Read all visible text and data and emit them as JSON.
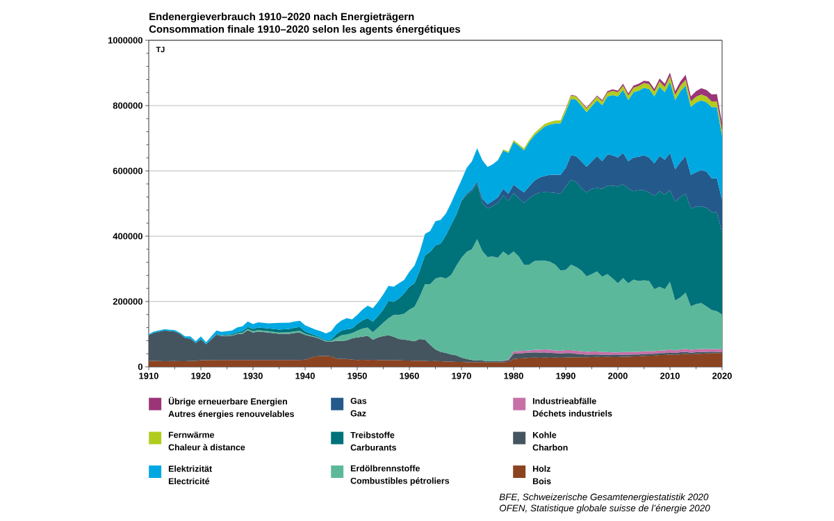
{
  "chart_data": {
    "type": "area",
    "stacked": true,
    "title": "Endenergieverbrauch 1910–2020 nach Energieträgern",
    "subtitle": "Consommation finale 1910–2020 selon les agents énergétiques",
    "ylabel": "TJ",
    "annotations": [
      "BFE, Schweizerische Gesamtenergiestatistik 2020",
      "OFEN, Statistique globale suisse de l’énergie 2020"
    ],
    "xlim": [
      1910,
      2020
    ],
    "ylim": [
      0,
      1000000
    ],
    "xticks": [
      1910,
      {
        "value": 1915,
        "label": null
      },
      1920,
      {
        "value": 1925,
        "label": null
      },
      1930,
      {
        "value": 1935,
        "label": null
      },
      1940,
      {
        "value": 1945,
        "label": null
      },
      1950,
      {
        "value": 1955,
        "label": null
      },
      1960,
      {
        "value": 1965,
        "label": null
      },
      1970,
      {
        "value": 1975,
        "label": null
      },
      1980,
      {
        "value": 1985,
        "label": null
      },
      1990,
      {
        "value": 1995,
        "label": null
      },
      2000,
      {
        "value": 2005,
        "label": null
      },
      2010,
      {
        "value": 2015,
        "label": null
      },
      2020
    ],
    "yticks": [
      0,
      {
        "value": 40000,
        "label": null
      },
      {
        "value": 80000,
        "label": null
      },
      {
        "value": 120000,
        "label": null
      },
      {
        "value": 160000,
        "label": null
      },
      200000,
      {
        "value": 240000,
        "label": null
      },
      {
        "value": 280000,
        "label": null
      },
      {
        "value": 320000,
        "label": null
      },
      {
        "value": 360000,
        "label": null
      },
      400000,
      {
        "value": 440000,
        "label": null
      },
      {
        "value": 480000,
        "label": null
      },
      {
        "value": 520000,
        "label": null
      },
      {
        "value": 560000,
        "label": null
      },
      600000,
      {
        "value": 640000,
        "label": null
      },
      {
        "value": 680000,
        "label": null
      },
      {
        "value": 720000,
        "label": null
      },
      {
        "value": 760000,
        "label": null
      },
      800000,
      {
        "value": 840000,
        "label": null
      },
      {
        "value": 880000,
        "label": null
      },
      {
        "value": 920000,
        "label": null
      },
      {
        "value": 960000,
        "label": null
      },
      1000000
    ],
    "grid": "y",
    "legend": "bottom",
    "x": [
      1910,
      1911,
      1913,
      1915,
      1916,
      1917,
      1918,
      1919,
      1920,
      1921,
      1923,
      1924,
      1926,
      1927,
      1928,
      1929,
      1930,
      1931,
      1933,
      1935,
      1937,
      1938,
      1939,
      1940,
      1942,
      1943,
      1944,
      1945,
      1946,
      1947,
      1948,
      1949,
      1950,
      1951,
      1952,
      1953,
      1954,
      1955,
      1956,
      1957,
      1958,
      1959,
      1960,
      1961,
      1962,
      1963,
      1964,
      1965,
      1966,
      1967,
      1968,
      1969,
      1970,
      1971,
      1972,
      1973,
      1974,
      1975,
      1976,
      1977,
      1978,
      1979,
      1980,
      1981,
      1982,
      1983,
      1984,
      1985,
      1986,
      1987,
      1988,
      1989,
      1990,
      1991,
      1992,
      1993,
      1994,
      1995,
      1996,
      1997,
      1998,
      1999,
      2000,
      2001,
      2002,
      2003,
      2004,
      2005,
      2006,
      2007,
      2008,
      2009,
      2010,
      2011,
      2012,
      2013,
      2014,
      2015,
      2016,
      2017,
      2018,
      2019,
      2020
    ],
    "series": [
      {
        "name": "Holz\nBois",
        "color": "#8b4321",
        "values": [
          18000,
          18000,
          17000,
          17500,
          17000,
          17000,
          18000,
          18000,
          20000,
          20000,
          21000,
          20500,
          21000,
          20500,
          21000,
          20500,
          21000,
          20500,
          21000,
          20500,
          21000,
          20500,
          21000,
          22000,
          32000,
          33000,
          33000,
          32000,
          25000,
          24000,
          24000,
          22000,
          21000,
          21500,
          21000,
          21500,
          21000,
          20000,
          20500,
          20000,
          20000,
          19000,
          19000,
          18000,
          18500,
          18000,
          17000,
          17500,
          17000,
          16000,
          16000,
          15000,
          15000,
          14000,
          14500,
          14000,
          14500,
          14000,
          14500,
          14000,
          14000,
          15000,
          24000,
          25500,
          26000,
          27500,
          28000,
          27500,
          28000,
          27500,
          28000,
          27500,
          28000,
          29000,
          29500,
          29000,
          29000,
          30000,
          30500,
          30000,
          30500,
          30000,
          30000,
          31000,
          31000,
          32000,
          32000,
          33500,
          34000,
          34000,
          36000,
          36000,
          38000,
          36000,
          38500,
          40000,
          38000,
          39500,
          40000,
          41000,
          41000,
          42000,
          42000
        ]
      },
      {
        "name": "Kohle\nCharbon",
        "color": "#455560",
        "values": [
          79000,
          86000,
          94000,
          90500,
          84000,
          71000,
          68000,
          55000,
          64000,
          49000,
          77000,
          73500,
          74000,
          79500,
          80000,
          91500,
          84000,
          87500,
          84000,
          80500,
          80000,
          83000,
          84000,
          76000,
          58000,
          51000,
          44000,
          45000,
          54000,
          55000,
          57000,
          65000,
          69000,
          70500,
          74000,
          61500,
          69000,
          74000,
          76500,
          72000,
          65000,
          64500,
          62000,
          60000,
          66500,
          65000,
          50000,
          35500,
          29000,
          26500,
          22000,
          20000,
          13000,
          10000,
          6500,
          5000,
          4500,
          3000,
          3000,
          3000,
          4000,
          5000,
          16000,
          16000,
          16000,
          16000,
          16000,
          16000,
          16000,
          15000,
          14000,
          13500,
          14000,
          13000,
          10500,
          10000,
          8000,
          8000,
          7500,
          7000,
          6500,
          6000,
          6000,
          6000,
          6000,
          6000,
          6000,
          6000,
          6000,
          6000,
          6000,
          6000,
          6000,
          6000,
          6000,
          6000,
          5000,
          5000,
          5000,
          5000,
          5500,
          4000,
          4000
        ]
      },
      {
        "name": "Industrieabfälle\nDéchets industriels",
        "color": "#c770a8",
        "values": [
          null,
          null,
          null,
          null,
          null,
          null,
          null,
          null,
          null,
          null,
          null,
          null,
          null,
          null,
          null,
          null,
          null,
          null,
          null,
          null,
          null,
          null,
          null,
          null,
          null,
          null,
          null,
          null,
          null,
          null,
          null,
          null,
          null,
          null,
          null,
          null,
          null,
          null,
          null,
          null,
          null,
          null,
          null,
          null,
          null,
          null,
          null,
          null,
          null,
          null,
          null,
          null,
          null,
          null,
          null,
          null,
          null,
          null,
          null,
          0,
          1000,
          2000,
          7000,
          7000,
          7000,
          6500,
          8000,
          8500,
          9000,
          9500,
          8000,
          8000,
          9000,
          9000,
          9000,
          9000,
          9000,
          9000,
          9000,
          8000,
          8000,
          8000,
          8000,
          8000,
          8000,
          8000,
          8000,
          8000,
          8000,
          8000,
          8000,
          8000,
          9000,
          8000,
          8500,
          9000,
          9000,
          9000,
          9000,
          9000,
          7500,
          8500,
          8000
        ]
      },
      {
        "name": "Erdölbrennstoffe\nCombustibles pétroliers",
        "color": "#5cb89b",
        "values": [
          null,
          null,
          null,
          null,
          null,
          null,
          null,
          null,
          null,
          null,
          0,
          1000,
          2000,
          2000,
          3000,
          4000,
          4000,
          4000,
          4000,
          4000,
          5000,
          5000,
          5000,
          3000,
          2000,
          1500,
          1000,
          2000,
          9500,
          18000,
          18000,
          16000,
          20500,
          25000,
          25000,
          23000,
          30000,
          41000,
          52000,
          67000,
          74000,
          79500,
          94000,
          106000,
          131000,
          170000,
          186000,
          217000,
          229000,
          227500,
          243000,
          274000,
          306000,
          328000,
          339000,
          372000,
          336000,
          319000,
          320500,
          317000,
          334000,
          319000,
          306000,
          289500,
          264000,
          263000,
          272000,
          273000,
          272000,
          270000,
          263000,
          246000,
          246000,
          262000,
          257000,
          247000,
          231000,
          237000,
          245000,
          231000,
          239000,
          226500,
          212000,
          227000,
          211000,
          221000,
          217000,
          217500,
          215000,
          190000,
          195000,
          188000,
          207000,
          153000,
          160000,
          172000,
          133000,
          138500,
          141000,
          130000,
          120000,
          115500,
          106000
        ]
      },
      {
        "name": "Treibstoffe\nCarburants",
        "color": "#00727a",
        "values": [
          null,
          null,
          null,
          null,
          null,
          null,
          null,
          null,
          null,
          0,
          2000,
          2000,
          3000,
          4000,
          5000,
          6000,
          7000,
          8000,
          8500,
          9000,
          10000,
          11000,
          12000,
          7000,
          4000,
          3000,
          2000,
          4000,
          11500,
          14000,
          16000,
          14000,
          20500,
          25000,
          29000,
          32000,
          36000,
          40000,
          53000,
          40000,
          50000,
          62000,
          70000,
          72000,
          79000,
          88000,
          99000,
          102000,
          102000,
          132000,
          153500,
          157000,
          174000,
          174000,
          177000,
          169000,
          147000,
          149000,
          154000,
          168000,
          172000,
          167000,
          179000,
          178000,
          189000,
          203000,
          203000,
          209000,
          209500,
          212000,
          219500,
          235000,
          255000,
          260000,
          260000,
          253000,
          257000,
          261000,
          256000,
          269000,
          271000,
          284500,
          296000,
          287000,
          290000,
          271000,
          278000,
          276000,
          271000,
          285000,
          293000,
          289000,
          281000,
          303000,
          307000,
          303000,
          299000,
          299000,
          296000,
          303000,
          299000,
          303000,
          250000
        ]
      },
      {
        "name": "Gas\nGaz",
        "color": "#24598b",
        "values": [
          null,
          null,
          null,
          null,
          null,
          null,
          null,
          null,
          null,
          null,
          null,
          null,
          null,
          null,
          null,
          null,
          null,
          null,
          null,
          null,
          null,
          null,
          null,
          null,
          null,
          null,
          null,
          null,
          null,
          null,
          null,
          null,
          null,
          null,
          null,
          null,
          null,
          null,
          null,
          null,
          null,
          null,
          null,
          null,
          null,
          null,
          null,
          null,
          null,
          null,
          null,
          0,
          2000,
          4000,
          6000,
          7000,
          13000,
          13000,
          16000,
          17000,
          20000,
          22000,
          26000,
          29000,
          32000,
          36500,
          43000,
          46000,
          50000,
          54000,
          56000,
          58000,
          57000,
          75000,
          79000,
          81000,
          78000,
          84000,
          97000,
          85000,
          95000,
          93000,
          89000,
          96000,
          83000,
          103000,
          102000,
          107000,
          107000,
          100000,
          108000,
          107000,
          114000,
          99000,
          107000,
          115000,
          104000,
          104500,
          111000,
          110000,
          104000,
          104000,
          100000
        ]
      },
      {
        "name": "Elektrizität\nElectricité",
        "color": "#00a8e2",
        "values": [
          3000,
          4000,
          4000,
          4000,
          3000,
          5000,
          7000,
          5000,
          9000,
          6000,
          11000,
          10000,
          11000,
          15000,
          15000,
          17000,
          15000,
          16000,
          15500,
          20500,
          19000,
          19500,
          19000,
          19000,
          18000,
          20500,
          22000,
          26000,
          30000,
          31000,
          34000,
          28000,
          28000,
          33000,
          38000,
          41000,
          43000,
          47000,
          46000,
          46000,
          47000,
          41000,
          46000,
          54000,
          57000,
          66000,
          64000,
          74000,
          73000,
          67000,
          66500,
          71000,
          62000,
          79000,
          86000,
          102000,
          118000,
          114000,
          112000,
          114000,
          118000,
          125000,
          131000,
          132000,
          129000,
          136500,
          139000,
          143000,
          151500,
          154000,
          156500,
          158000,
          172000,
          173000,
          173000,
          170500,
          168000,
          169500,
          171000,
          171000,
          178000,
          184000,
          187000,
          193000,
          188000,
          200000,
          203000,
          206000,
          210000,
          205000,
          212000,
          207000,
          218000,
          212000,
          217000,
          216000,
          208000,
          213500,
          214000,
          212000,
          218000,
          218000,
          197000
        ]
      },
      {
        "name": "Fernwärme\nChaleur à distance",
        "color": "#b2cb1f",
        "values": [
          null,
          null,
          null,
          null,
          null,
          null,
          null,
          null,
          null,
          null,
          null,
          null,
          null,
          null,
          null,
          null,
          null,
          null,
          null,
          null,
          null,
          null,
          null,
          null,
          null,
          null,
          null,
          null,
          null,
          null,
          null,
          null,
          null,
          null,
          null,
          null,
          null,
          null,
          null,
          null,
          null,
          null,
          null,
          null,
          null,
          null,
          null,
          null,
          null,
          null,
          null,
          null,
          null,
          null,
          null,
          null,
          null,
          null,
          null,
          0,
          3000,
          4000,
          5000,
          5000,
          6000,
          6000,
          7000,
          7500,
          8000,
          8000,
          9000,
          9000,
          10000,
          10000,
          10000,
          10500,
          11000,
          10500,
          12000,
          12000,
          12000,
          13000,
          13000,
          13000,
          14000,
          14000,
          14000,
          15000,
          15000,
          15000,
          16000,
          16000,
          17000,
          16000,
          17000,
          18000,
          17000,
          18000,
          18000,
          18000,
          18000,
          18000,
          18000
        ]
      },
      {
        "name": "Übrige erneuerbare Energien\nAutres énergies renouvelables",
        "color": "#9b3577",
        "values": [
          null,
          null,
          null,
          null,
          null,
          null,
          null,
          null,
          null,
          null,
          null,
          null,
          null,
          null,
          null,
          null,
          null,
          null,
          null,
          null,
          null,
          null,
          null,
          null,
          null,
          null,
          null,
          null,
          null,
          null,
          null,
          null,
          null,
          null,
          null,
          null,
          null,
          null,
          null,
          null,
          null,
          null,
          null,
          null,
          null,
          null,
          null,
          null,
          null,
          null,
          null,
          null,
          null,
          null,
          null,
          null,
          null,
          null,
          null,
          null,
          null,
          null,
          null,
          null,
          null,
          null,
          null,
          null,
          null,
          null,
          null,
          0,
          1000,
          2000,
          2000,
          2500,
          3000,
          3000,
          3000,
          4000,
          4000,
          5000,
          5000,
          6000,
          6000,
          6000,
          7000,
          7000,
          8000,
          8000,
          9000,
          10000,
          11000,
          11000,
          13000,
          15000,
          15000,
          17000,
          19000,
          20000,
          21000,
          22000,
          20000
        ]
      }
    ]
  }
}
